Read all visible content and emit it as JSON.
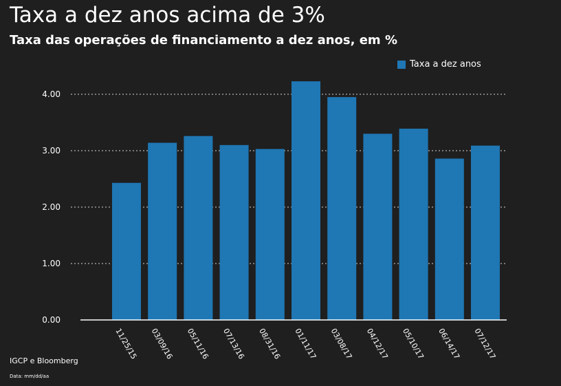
{
  "chart_data": {
    "type": "bar",
    "title": "Taxa a dez anos acima de 3%",
    "subtitle": "Taxa das operações de financiamento a dez anos, em %",
    "categories": [
      "11/25/15",
      "03/09/16",
      "05/11/16",
      "07/13/16",
      "08/31/16",
      "01/11/17",
      "03/08/17",
      "04/12/17",
      "05/10/17",
      "06/14/17",
      "07/12/17"
    ],
    "series": [
      {
        "name": "Taxa a dez anos",
        "values": [
          2.43,
          3.14,
          3.26,
          3.1,
          3.03,
          4.23,
          3.95,
          3.3,
          3.39,
          2.86,
          3.09
        ]
      }
    ],
    "yticks": [
      "0.00",
      "1.00",
      "2.00",
      "3.00",
      "4.00"
    ],
    "ylim": [
      0,
      4.2
    ],
    "xlabel": "",
    "ylabel": "",
    "grid": true,
    "legend_position": "top-right",
    "bar_color": "#1f77b4"
  },
  "source": "IGCP e Bloomberg",
  "note": "Data: mm/dd/aa"
}
